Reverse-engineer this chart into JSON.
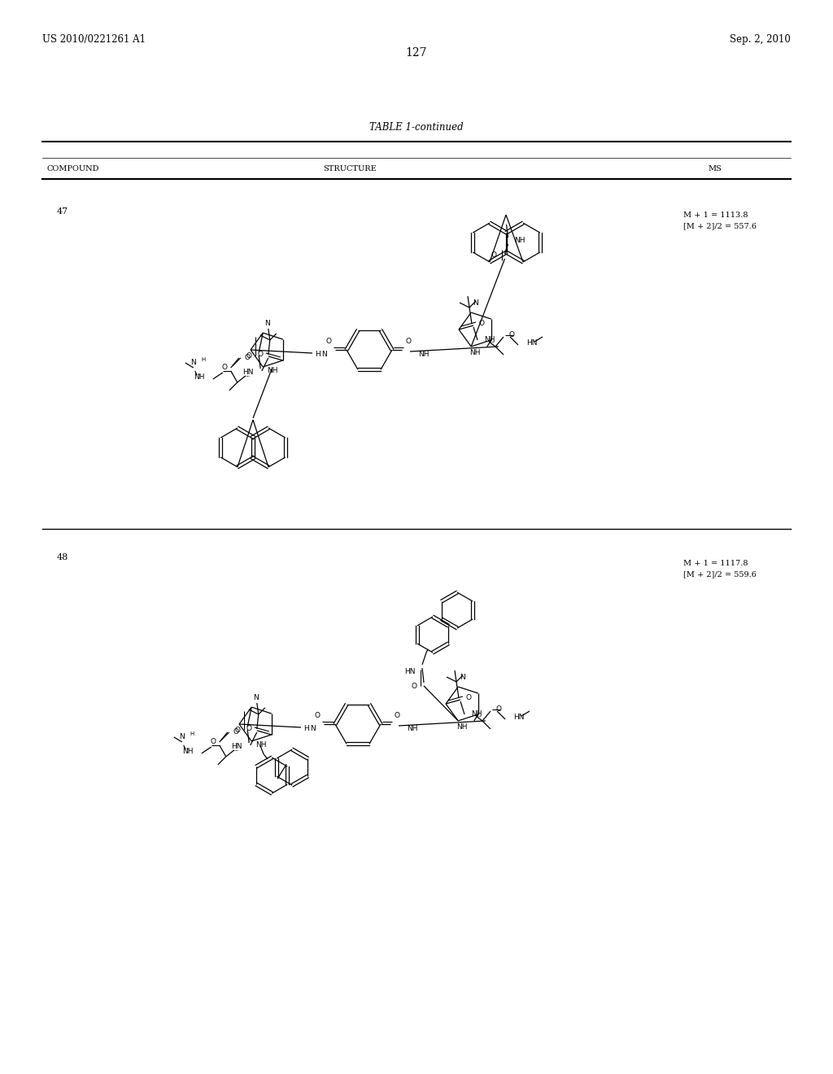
{
  "background_color": "#ffffff",
  "page_width": 10.24,
  "page_height": 13.2,
  "header_left": "US 2010/0221261 A1",
  "header_right": "Sep. 2, 2010",
  "page_number": "127",
  "table_title": "TABLE 1-continued",
  "col_headers": [
    "COMPOUND",
    "STRUCTURE",
    "MS"
  ],
  "compounds": [
    {
      "id": "47",
      "ms_text": "M + 1 = 1113.8\n[M + 2]/2 = 557.6"
    },
    {
      "id": "48",
      "ms_text": "M + 1 = 1117.8\n[M + 2]/2 = 559.6"
    }
  ],
  "text_color": "#000000",
  "line_color": "#000000"
}
